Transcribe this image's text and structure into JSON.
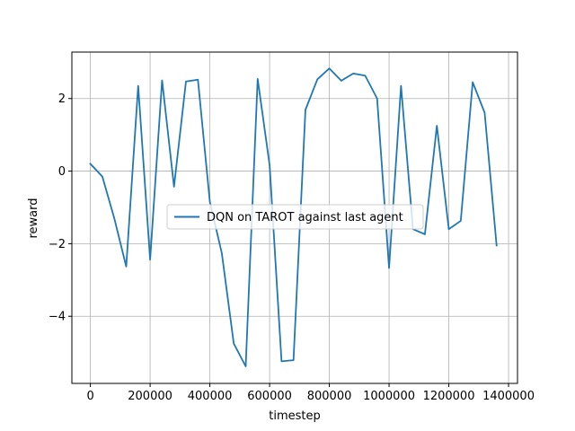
{
  "chart_data": {
    "type": "line",
    "title": "",
    "xlabel": "timestep",
    "ylabel": "reward",
    "xlim": [
      -62000,
      1430000
    ],
    "ylim": [
      -5.85,
      3.28
    ],
    "xticks": [
      0,
      200000,
      400000,
      600000,
      800000,
      1000000,
      1200000,
      1400000
    ],
    "xtick_labels": [
      "0",
      "200000",
      "400000",
      "600000",
      "800000",
      "1000000",
      "1200000",
      "1400000"
    ],
    "yticks": [
      -4,
      -2,
      0,
      2
    ],
    "ytick_labels": [
      "−4",
      "−2",
      "0",
      "2"
    ],
    "grid": true,
    "legend": {
      "position": "center",
      "entries": [
        "DQN on TAROT against last agent"
      ]
    },
    "series": [
      {
        "name": "DQN on TAROT against last agent",
        "color": "#1f77b4",
        "x": [
          0,
          40000,
          80000,
          120000,
          160000,
          200000,
          240000,
          280000,
          320000,
          360000,
          400000,
          440000,
          480000,
          520000,
          560000,
          600000,
          640000,
          680000,
          720000,
          760000,
          800000,
          840000,
          880000,
          920000,
          960000,
          1000000,
          1040000,
          1080000,
          1120000,
          1160000,
          1200000,
          1240000,
          1280000,
          1320000,
          1360000
        ],
        "y": [
          0.2,
          -0.15,
          -1.3,
          -2.63,
          2.35,
          -2.44,
          2.5,
          -0.43,
          2.47,
          2.52,
          -0.85,
          -2.26,
          -4.75,
          -5.38,
          2.54,
          0.17,
          -5.24,
          -5.21,
          1.69,
          2.53,
          2.83,
          2.49,
          2.69,
          2.63,
          2.0,
          -2.67,
          2.35,
          -1.6,
          -1.74,
          1.25,
          -1.6,
          -1.37,
          2.45,
          1.61,
          -2.05
        ]
      }
    ]
  }
}
